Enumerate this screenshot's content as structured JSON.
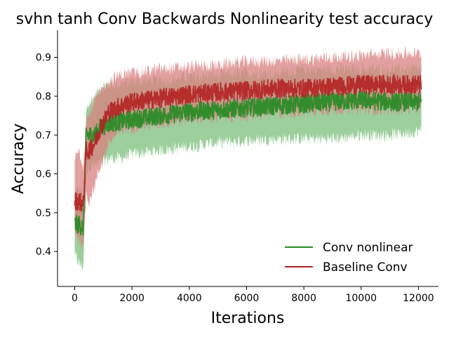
{
  "chart_data": {
    "type": "line",
    "title": "svhn tanh Conv Backwards Nonlinearity test accuracy",
    "xlabel": "Iterations",
    "ylabel": "Accuracy",
    "xlim": [
      -600,
      12700
    ],
    "ylim": [
      0.31,
      0.97
    ],
    "xticks": [
      0,
      2000,
      4000,
      6000,
      8000,
      10000,
      12000
    ],
    "yticks": [
      0.4,
      0.5,
      0.6,
      0.7,
      0.8,
      0.9
    ],
    "xtick_labels": [
      "0",
      "2000",
      "4000",
      "6000",
      "8000",
      "10000",
      "12000"
    ],
    "ytick_labels": [
      "0.4",
      "0.5",
      "0.6",
      "0.7",
      "0.8",
      "0.9"
    ],
    "grid": false,
    "legend_position": "lower-right",
    "series": [
      {
        "name": "Conv nonlinear",
        "color": "#228b22",
        "band_color": "#7cbf7c",
        "x": [
          0,
          150,
          300,
          400,
          500,
          700,
          900,
          1200,
          1600,
          2000,
          3000,
          4000,
          5000,
          6000,
          7000,
          8000,
          9000,
          10000,
          11000,
          12100
        ],
        "mean": [
          0.47,
          0.47,
          0.46,
          0.7,
          0.7,
          0.7,
          0.72,
          0.73,
          0.735,
          0.74,
          0.75,
          0.76,
          0.765,
          0.77,
          0.775,
          0.78,
          0.785,
          0.79,
          0.785,
          0.785
        ],
        "lower": [
          0.39,
          0.37,
          0.36,
          0.6,
          0.62,
          0.62,
          0.63,
          0.64,
          0.64,
          0.65,
          0.66,
          0.67,
          0.68,
          0.685,
          0.69,
          0.69,
          0.69,
          0.7,
          0.7,
          0.71
        ],
        "upper": [
          0.55,
          0.56,
          0.55,
          0.76,
          0.78,
          0.8,
          0.82,
          0.83,
          0.83,
          0.84,
          0.84,
          0.85,
          0.855,
          0.86,
          0.86,
          0.87,
          0.87,
          0.87,
          0.87,
          0.87
        ]
      },
      {
        "name": "Baseline Conv",
        "color": "#b22222",
        "band_color": "#d98080",
        "x": [
          0,
          150,
          300,
          400,
          500,
          700,
          900,
          1200,
          1600,
          2000,
          3000,
          4000,
          5000,
          6000,
          7000,
          8000,
          9000,
          10000,
          11000,
          12100
        ],
        "mean": [
          0.53,
          0.53,
          0.52,
          0.66,
          0.66,
          0.68,
          0.72,
          0.76,
          0.775,
          0.785,
          0.795,
          0.805,
          0.81,
          0.815,
          0.82,
          0.82,
          0.825,
          0.83,
          0.83,
          0.83
        ],
        "lower": [
          0.46,
          0.43,
          0.41,
          0.55,
          0.53,
          0.57,
          0.62,
          0.68,
          0.71,
          0.72,
          0.73,
          0.74,
          0.745,
          0.75,
          0.755,
          0.76,
          0.765,
          0.765,
          0.765,
          0.77
        ],
        "upper": [
          0.64,
          0.66,
          0.62,
          0.74,
          0.75,
          0.79,
          0.81,
          0.84,
          0.855,
          0.86,
          0.87,
          0.875,
          0.88,
          0.89,
          0.89,
          0.895,
          0.9,
          0.905,
          0.91,
          0.91
        ]
      }
    ]
  }
}
